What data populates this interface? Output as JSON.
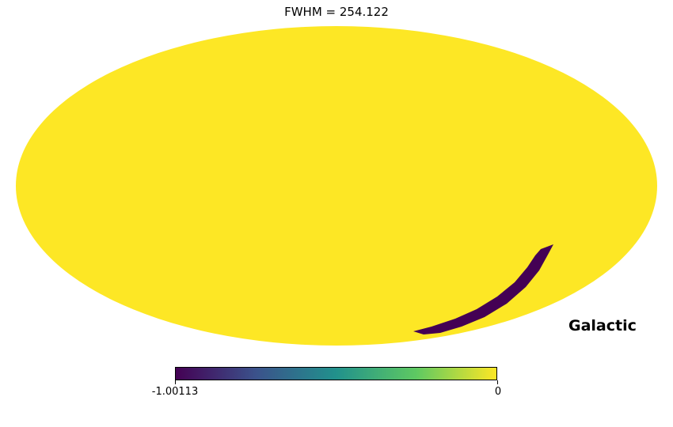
{
  "title": "FWHM = 254.122",
  "projection": "mollweide",
  "coordinate_system_label": "Galactic",
  "colormap": {
    "name": "viridis",
    "colors": [
      "#440154",
      "#3b528b",
      "#21918c",
      "#5ec962",
      "#fde725"
    ],
    "min_label": "-1.00113",
    "max_label": "0",
    "min": -1.00113,
    "max": 0
  },
  "map": {
    "background_value": 0,
    "background_color": "#fde725",
    "feature_value": -1.00113,
    "feature_color": "#440154"
  }
}
